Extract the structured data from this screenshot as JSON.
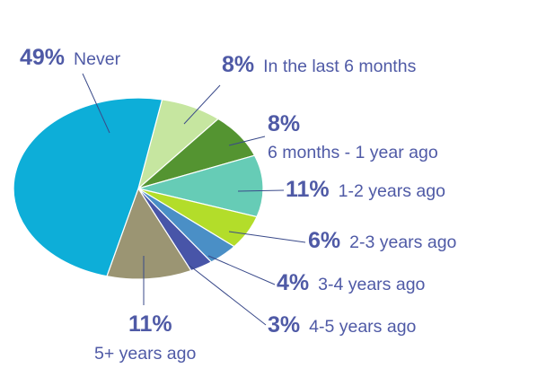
{
  "chart_data": {
    "type": "pie",
    "title": "",
    "start_angle_deg": -79,
    "direction": "clockwise",
    "slices": [
      {
        "category": "In the last 6 months",
        "value": 8,
        "pct_label": "8%",
        "color": "#c6e6a0"
      },
      {
        "category": "6 months - 1 year ago",
        "value": 8,
        "pct_label": "8%",
        "color": "#549431"
      },
      {
        "category": "1-2 years ago",
        "value": 11,
        "pct_label": "11%",
        "color": "#66ccb6"
      },
      {
        "category": "2-3 years ago",
        "value": 6,
        "pct_label": "6%",
        "color": "#b3dd2a"
      },
      {
        "category": "3-4 years ago",
        "value": 4,
        "pct_label": "4%",
        "color": "#4a8fc6"
      },
      {
        "category": "4-5 years ago",
        "value": 3,
        "pct_label": "3%",
        "color": "#4855a8"
      },
      {
        "category": "5+ years ago",
        "value": 11,
        "pct_label": "11%",
        "color": "#9b9573"
      },
      {
        "category": "Never",
        "value": 49,
        "pct_label": "49%",
        "color": "#0daed8"
      }
    ]
  }
}
